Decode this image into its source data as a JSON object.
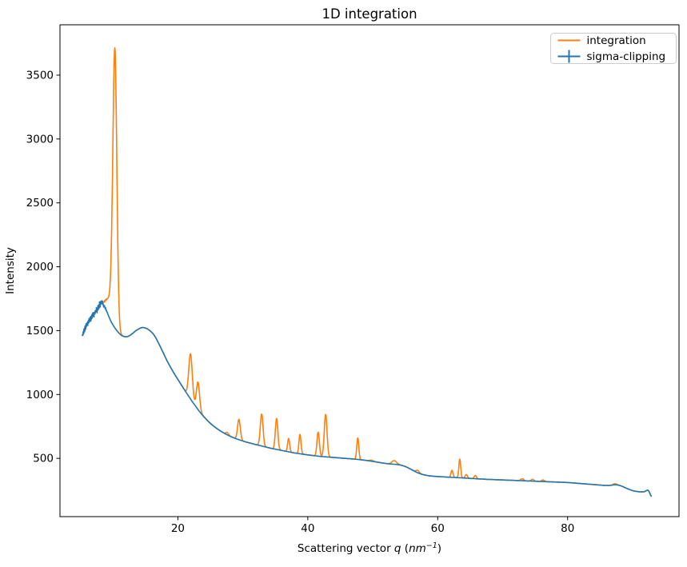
{
  "chart_data": {
    "type": "line",
    "title": "1D integration",
    "xlabel": "Scattering vector q (nm⁻¹)",
    "xlabel_rich": [
      {
        "text": "Scattering vector ",
        "style": "normal"
      },
      {
        "text": "q",
        "style": "italic"
      },
      {
        "text": " (",
        "style": "normal"
      },
      {
        "text": "nm",
        "style": "italic"
      },
      {
        "text": "−1",
        "style": "superscript-italic"
      },
      {
        "text": ")",
        "style": "normal"
      }
    ],
    "ylabel": "Intensity",
    "xlim": [
      1.85,
      97.15
    ],
    "ylim": [
      44,
      3894
    ],
    "xticks": [
      20,
      40,
      60,
      80
    ],
    "yticks": [
      500,
      1000,
      1500,
      2000,
      2500,
      3000,
      3500
    ],
    "grid": false,
    "background": "#ffffff",
    "legend": {
      "position": "upper right",
      "border_color": "#cccccc",
      "entries": [
        {
          "label": "integration",
          "color": "#ff7f0e",
          "marker": "line"
        },
        {
          "label": "sigma-clipping",
          "color": "#1f77b4",
          "marker": "errorbar"
        }
      ]
    },
    "series": [
      {
        "name": "integration",
        "color": "#ff7f0e",
        "style": "solid",
        "composition": "baseline_points plus gaussian peaks plus shared start noise"
      },
      {
        "name": "sigma-clipping",
        "color": "#1f77b4",
        "style": "solid_with_errorbars",
        "composition": "baseline_points plus shared start noise"
      }
    ],
    "q_range": [
      5.3,
      92.9
    ],
    "noise": {
      "q_range": [
        5.3,
        9.3
      ],
      "amplitude": 22,
      "fade_from": 8.1
    },
    "baseline_points": [
      [
        5.3,
        1462
      ],
      [
        5.5,
        1490
      ],
      [
        5.7,
        1515
      ],
      [
        5.9,
        1538
      ],
      [
        6.1,
        1558
      ],
      [
        6.35,
        1578
      ],
      [
        6.6,
        1598
      ],
      [
        6.85,
        1615
      ],
      [
        7.1,
        1632
      ],
      [
        7.35,
        1650
      ],
      [
        7.6,
        1668
      ],
      [
        7.85,
        1690
      ],
      [
        8.05,
        1712
      ],
      [
        8.2,
        1720
      ],
      [
        8.35,
        1714
      ],
      [
        8.5,
        1705
      ],
      [
        8.7,
        1688
      ],
      [
        8.95,
        1662
      ],
      [
        9.2,
        1632
      ],
      [
        9.5,
        1595
      ],
      [
        9.8,
        1562
      ],
      [
        10.1,
        1537
      ],
      [
        10.4,
        1514
      ],
      [
        10.7,
        1494
      ],
      [
        11.0,
        1477
      ],
      [
        11.3,
        1464
      ],
      [
        11.6,
        1456
      ],
      [
        11.9,
        1452
      ],
      [
        12.2,
        1453
      ],
      [
        12.5,
        1459
      ],
      [
        12.8,
        1469
      ],
      [
        13.1,
        1481
      ],
      [
        13.4,
        1494
      ],
      [
        13.7,
        1505
      ],
      [
        14.0,
        1514
      ],
      [
        14.3,
        1521
      ],
      [
        14.6,
        1524
      ],
      [
        14.9,
        1522
      ],
      [
        15.2,
        1516
      ],
      [
        15.5,
        1507
      ],
      [
        15.8,
        1495
      ],
      [
        16.1,
        1480
      ],
      [
        16.4,
        1460
      ],
      [
        16.7,
        1434
      ],
      [
        17.0,
        1405
      ],
      [
        17.3,
        1374
      ],
      [
        17.6,
        1342
      ],
      [
        17.9,
        1310
      ],
      [
        18.2,
        1278
      ],
      [
        18.5,
        1248
      ],
      [
        18.8,
        1220
      ],
      [
        19.1,
        1193
      ],
      [
        19.4,
        1167
      ],
      [
        19.7,
        1142
      ],
      [
        20.0,
        1118
      ],
      [
        20.3,
        1094
      ],
      [
        20.6,
        1070
      ],
      [
        20.9,
        1046
      ],
      [
        21.2,
        1022
      ],
      [
        21.5,
        999
      ],
      [
        21.8,
        976
      ],
      [
        22.1,
        953
      ],
      [
        22.4,
        931
      ],
      [
        22.7,
        910
      ],
      [
        23.0,
        889
      ],
      [
        23.3,
        869
      ],
      [
        23.6,
        850
      ],
      [
        23.9,
        832
      ],
      [
        24.2,
        815
      ],
      [
        24.5,
        799
      ],
      [
        24.8,
        784
      ],
      [
        25.1,
        770
      ],
      [
        25.4,
        757
      ],
      [
        25.7,
        745
      ],
      [
        26.0,
        734
      ],
      [
        26.3,
        723
      ],
      [
        26.6,
        713
      ],
      [
        26.9,
        704
      ],
      [
        27.2,
        695
      ],
      [
        27.5,
        687
      ],
      [
        27.8,
        679
      ],
      [
        28.1,
        672
      ],
      [
        28.4,
        665
      ],
      [
        28.7,
        659
      ],
      [
        29.0,
        653
      ],
      [
        29.3,
        648
      ],
      [
        29.6,
        643
      ],
      [
        29.9,
        638
      ],
      [
        30.2,
        633
      ],
      [
        30.5,
        628
      ],
      [
        30.8,
        624
      ],
      [
        31.1,
        620
      ],
      [
        31.4,
        616
      ],
      [
        31.7,
        612
      ],
      [
        32.0,
        608
      ],
      [
        32.4,
        603
      ],
      [
        32.8,
        598
      ],
      [
        33.2,
        593
      ],
      [
        33.6,
        588
      ],
      [
        34.0,
        583
      ],
      [
        34.4,
        578
      ],
      [
        34.8,
        574
      ],
      [
        35.2,
        570
      ],
      [
        35.6,
        566
      ],
      [
        36.0,
        562
      ],
      [
        36.4,
        558
      ],
      [
        36.8,
        554
      ],
      [
        37.2,
        550
      ],
      [
        37.6,
        546
      ],
      [
        38.0,
        542
      ],
      [
        38.4,
        539
      ],
      [
        38.8,
        536
      ],
      [
        39.2,
        533
      ],
      [
        39.6,
        530
      ],
      [
        40.0,
        527
      ],
      [
        40.5,
        524
      ],
      [
        41.0,
        521
      ],
      [
        41.5,
        518
      ],
      [
        42.0,
        515
      ],
      [
        42.5,
        513
      ],
      [
        43.0,
        511
      ],
      [
        43.5,
        509
      ],
      [
        44.0,
        507
      ],
      [
        44.5,
        505
      ],
      [
        45.0,
        503
      ],
      [
        45.5,
        501
      ],
      [
        46.0,
        499
      ],
      [
        46.5,
        497
      ],
      [
        47.0,
        495
      ],
      [
        47.5,
        493
      ],
      [
        48.0,
        490
      ],
      [
        48.5,
        487
      ],
      [
        49.0,
        484
      ],
      [
        49.5,
        480
      ],
      [
        50.0,
        476
      ],
      [
        50.5,
        472
      ],
      [
        51.0,
        468
      ],
      [
        51.5,
        464
      ],
      [
        52.0,
        460
      ],
      [
        52.5,
        457
      ],
      [
        53.0,
        455
      ],
      [
        53.5,
        453
      ],
      [
        54.0,
        450
      ],
      [
        54.4,
        446
      ],
      [
        54.8,
        440
      ],
      [
        55.2,
        432
      ],
      [
        55.6,
        422
      ],
      [
        56.0,
        411
      ],
      [
        56.4,
        400
      ],
      [
        56.8,
        390
      ],
      [
        57.2,
        382
      ],
      [
        57.6,
        375
      ],
      [
        58.0,
        370
      ],
      [
        58.4,
        366
      ],
      [
        58.8,
        363
      ],
      [
        59.2,
        361
      ],
      [
        59.6,
        359
      ],
      [
        60.0,
        358
      ],
      [
        60.5,
        356
      ],
      [
        61.0,
        355
      ],
      [
        61.5,
        353
      ],
      [
        62.0,
        352
      ],
      [
        62.5,
        351
      ],
      [
        63.0,
        349
      ],
      [
        63.5,
        348
      ],
      [
        64.0,
        346
      ],
      [
        64.5,
        345
      ],
      [
        65.0,
        343
      ],
      [
        65.5,
        342
      ],
      [
        66.0,
        340
      ],
      [
        66.5,
        339
      ],
      [
        67.0,
        338
      ],
      [
        67.5,
        336
      ],
      [
        68.0,
        335
      ],
      [
        68.5,
        334
      ],
      [
        69.0,
        333
      ],
      [
        69.5,
        332
      ],
      [
        70.0,
        331
      ],
      [
        70.5,
        330
      ],
      [
        71.0,
        329
      ],
      [
        71.5,
        328
      ],
      [
        72.0,
        327
      ],
      [
        72.5,
        326
      ],
      [
        73.0,
        325
      ],
      [
        73.5,
        324
      ],
      [
        74.0,
        323
      ],
      [
        74.5,
        322
      ],
      [
        75.0,
        321
      ],
      [
        75.5,
        320
      ],
      [
        76.0,
        319
      ],
      [
        76.5,
        318
      ],
      [
        77.0,
        317
      ],
      [
        77.5,
        316
      ],
      [
        78.0,
        315
      ],
      [
        78.5,
        314
      ],
      [
        79.0,
        313
      ],
      [
        79.5,
        312
      ],
      [
        80.0,
        311
      ],
      [
        80.5,
        309
      ],
      [
        81.0,
        307
      ],
      [
        81.5,
        305
      ],
      [
        82.0,
        303
      ],
      [
        82.5,
        301
      ],
      [
        83.0,
        299
      ],
      [
        83.5,
        297
      ],
      [
        84.0,
        295
      ],
      [
        84.5,
        293
      ],
      [
        85.0,
        291
      ],
      [
        85.5,
        289
      ],
      [
        86.0,
        288
      ],
      [
        86.4,
        288
      ],
      [
        86.8,
        290
      ],
      [
        87.2,
        293
      ],
      [
        87.6,
        292
      ],
      [
        88.0,
        288
      ],
      [
        88.4,
        281
      ],
      [
        88.8,
        272
      ],
      [
        89.2,
        263
      ],
      [
        89.6,
        255
      ],
      [
        90.0,
        248
      ],
      [
        90.4,
        243
      ],
      [
        90.8,
        240
      ],
      [
        91.2,
        238
      ],
      [
        91.6,
        238
      ],
      [
        91.9,
        241
      ],
      [
        92.15,
        248
      ],
      [
        92.35,
        251
      ],
      [
        92.5,
        244
      ],
      [
        92.65,
        228
      ],
      [
        92.8,
        210
      ],
      [
        92.9,
        203
      ]
    ],
    "integration_peaks": [
      {
        "q": 9.3,
        "amplitude": 110,
        "width": 0.6
      },
      {
        "q": 10.0,
        "amplitude": 280,
        "width": 0.45
      },
      {
        "q": 10.32,
        "amplitude": 2010,
        "width": 0.42
      },
      {
        "q": 21.95,
        "amplitude": 355,
        "width": 0.38
      },
      {
        "q": 23.1,
        "amplitude": 215,
        "width": 0.34
      },
      {
        "q": 27.6,
        "amplitude": 18,
        "width": 0.3
      },
      {
        "q": 29.4,
        "amplitude": 160,
        "width": 0.3
      },
      {
        "q": 32.9,
        "amplitude": 250,
        "width": 0.3
      },
      {
        "q": 35.2,
        "amplitude": 243,
        "width": 0.27
      },
      {
        "q": 37.05,
        "amplitude": 105,
        "width": 0.22
      },
      {
        "q": 38.8,
        "amplitude": 152,
        "width": 0.22
      },
      {
        "q": 41.6,
        "amplitude": 188,
        "width": 0.26
      },
      {
        "q": 42.75,
        "amplitude": 332,
        "width": 0.3
      },
      {
        "q": 47.7,
        "amplitude": 168,
        "width": 0.22
      },
      {
        "q": 49.8,
        "amplitude": 8,
        "width": 0.4
      },
      {
        "q": 53.3,
        "amplitude": 29,
        "width": 0.5
      },
      {
        "q": 56.9,
        "amplitude": 18,
        "width": 0.35
      },
      {
        "q": 62.2,
        "amplitude": 55,
        "width": 0.22
      },
      {
        "q": 63.4,
        "amplitude": 146,
        "width": 0.2
      },
      {
        "q": 64.4,
        "amplitude": 28,
        "width": 0.25
      },
      {
        "q": 65.8,
        "amplitude": 25,
        "width": 0.25
      },
      {
        "q": 73.0,
        "amplitude": 16,
        "width": 0.3
      },
      {
        "q": 74.6,
        "amplitude": 14,
        "width": 0.3
      },
      {
        "q": 76.2,
        "amplitude": 12,
        "width": 0.3
      },
      {
        "q": 87.3,
        "amplitude": 8,
        "width": 0.4
      }
    ]
  }
}
